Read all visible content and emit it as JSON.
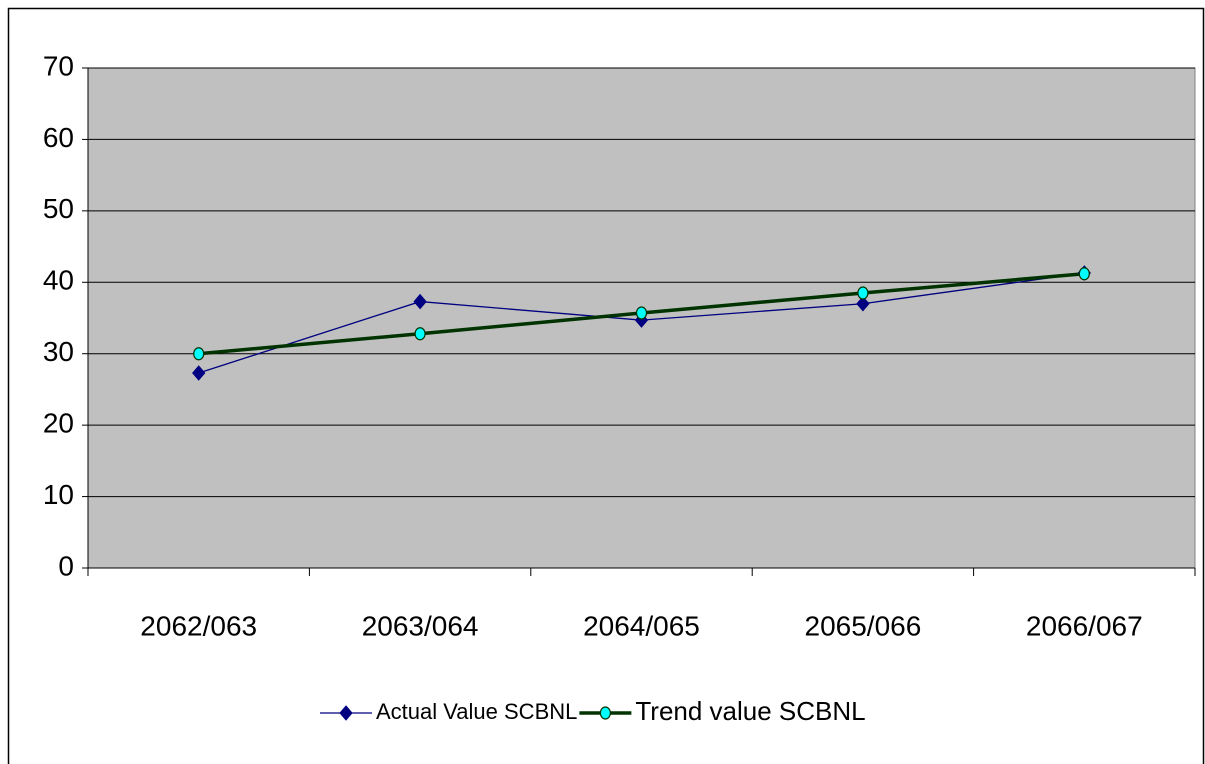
{
  "chart_data": {
    "type": "line",
    "categories": [
      "2062/063",
      "2063/064",
      "2064/065",
      "2065/066",
      "2066/067"
    ],
    "series": [
      {
        "name": "Actual Value SCBNL",
        "color": "#000080",
        "marker": "diamond",
        "values": [
          27.3,
          37.3,
          34.7,
          37.0,
          41.3
        ]
      },
      {
        "name": "Trend value SCBNL",
        "color": "#003300",
        "marker": "circle",
        "values": [
          30.0,
          32.8,
          35.7,
          38.5,
          41.2
        ]
      }
    ],
    "ylim": [
      0,
      70
    ],
    "yticks": [
      0,
      10,
      20,
      30,
      40,
      50,
      60,
      70
    ],
    "grid": true,
    "plot_background": "#c0c0c0",
    "legend": "bottom"
  }
}
